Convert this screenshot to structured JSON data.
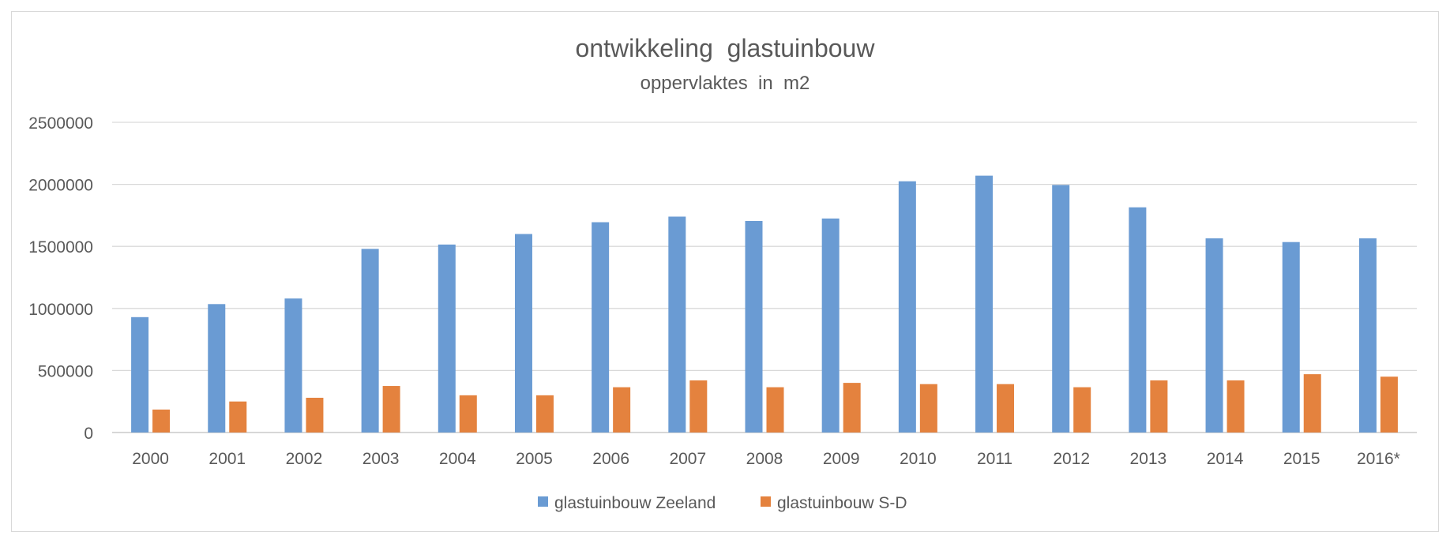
{
  "chart_data": {
    "type": "bar",
    "title": "ontwikkeling  glastuinbouw",
    "subtitle": "oppervlaktes  in  m2",
    "xlabel": "",
    "ylabel": "",
    "ylim": [
      0,
      2500000
    ],
    "yticks": [
      "0",
      "500000",
      "1000000",
      "1500000",
      "2000000",
      "2500000"
    ],
    "grid": true,
    "legend_position": "bottom",
    "categories": [
      "2000",
      "2001",
      "2002",
      "2003",
      "2004",
      "2005",
      "2006",
      "2007",
      "2008",
      "2009",
      "2010",
      "2011",
      "2012",
      "2013",
      "2014",
      "2015",
      "2016*"
    ],
    "series": [
      {
        "name": "glastuinbouw Zeeland",
        "color": "#6a9bd3",
        "values": [
          930000,
          1035000,
          1080000,
          1480000,
          1515000,
          1600000,
          1695000,
          1740000,
          1705000,
          1725000,
          2025000,
          2070000,
          1995000,
          1815000,
          1565000,
          1535000,
          1565000
        ]
      },
      {
        "name": "glastuinbouw S-D",
        "color": "#e4823e",
        "values": [
          185000,
          250000,
          280000,
          375000,
          300000,
          300000,
          365000,
          420000,
          365000,
          400000,
          390000,
          390000,
          365000,
          420000,
          420000,
          470000,
          450000
        ]
      }
    ]
  }
}
